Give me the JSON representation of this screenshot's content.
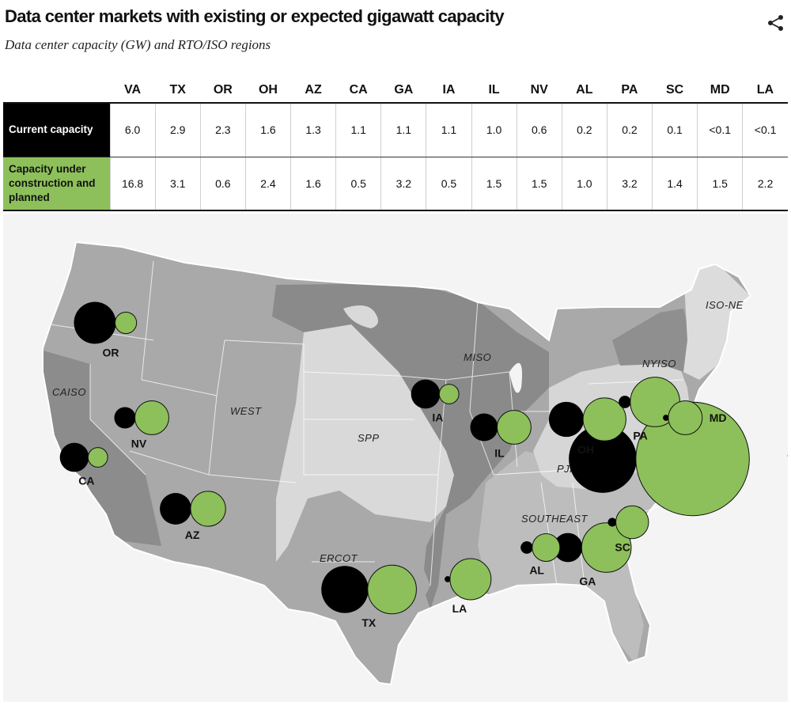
{
  "header": {
    "title": "Data center markets with existing or expected gigawatt capacity",
    "subtitle": "Data center capacity (GW) and RTO/ISO regions"
  },
  "colors": {
    "current": "#000000",
    "planned": "#8dc05a",
    "map_background": "#f4f4f4",
    "region_light": "#d8d8d8",
    "region_mid": "#a9a9a9",
    "region_dark": "#8a8a8a"
  },
  "icons": {
    "share": "share-icon"
  },
  "chart_data": {
    "type": "table",
    "columns": [
      "VA",
      "TX",
      "OR",
      "OH",
      "AZ",
      "CA",
      "GA",
      "IA",
      "IL",
      "NV",
      "AL",
      "PA",
      "SC",
      "MD",
      "LA"
    ],
    "rows": [
      {
        "label": "Current capacity",
        "display": [
          "6.0",
          "2.9",
          "2.3",
          "1.6",
          "1.3",
          "1.1",
          "1.1",
          "1.1",
          "1.0",
          "0.6",
          "0.2",
          "0.2",
          "0.1",
          "<0.1",
          "<0.1"
        ],
        "values": [
          6.0,
          2.9,
          2.3,
          1.6,
          1.3,
          1.1,
          1.1,
          1.1,
          1.0,
          0.6,
          0.2,
          0.2,
          0.1,
          0.05,
          0.05
        ]
      },
      {
        "label": "Capacity under construction and planned",
        "display": [
          "16.8",
          "3.1",
          "0.6",
          "2.4",
          "1.6",
          "0.5",
          "3.2",
          "0.5",
          "1.5",
          "1.5",
          "1.0",
          "3.2",
          "1.4",
          "1.5",
          "2.2"
        ],
        "values": [
          16.8,
          3.1,
          0.6,
          2.4,
          1.6,
          0.5,
          3.2,
          0.5,
          1.5,
          1.5,
          1.0,
          3.2,
          1.4,
          1.5,
          2.2
        ]
      }
    ],
    "map": {
      "type": "proportional-symbol",
      "regions": [
        "CAISO",
        "WEST",
        "SPP",
        "MISO",
        "ERCOT",
        "PJM",
        "SOUTHEAST",
        "NYISO",
        "ISO-NE"
      ]
    }
  }
}
